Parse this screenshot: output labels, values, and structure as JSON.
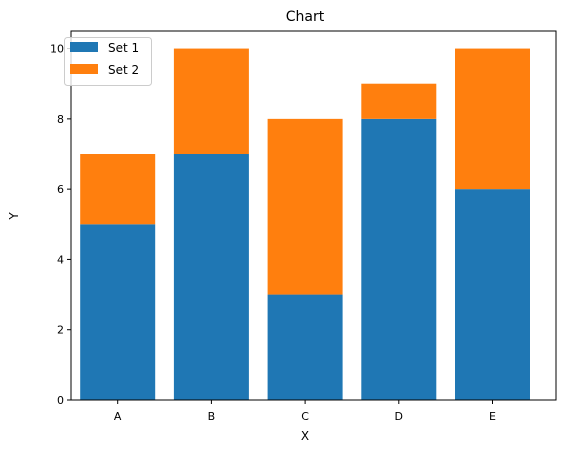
{
  "chart_data": {
    "type": "bar",
    "stacked": true,
    "title": "Chart",
    "xlabel": "X",
    "ylabel": "Y",
    "categories": [
      "A",
      "B",
      "C",
      "D",
      "E"
    ],
    "series": [
      {
        "name": "Set 1",
        "values": [
          5,
          7,
          3,
          8,
          6
        ],
        "color": "#1f77b4"
      },
      {
        "name": "Set 2",
        "values": [
          2,
          3,
          5,
          1,
          4
        ],
        "color": "#ff7f0e"
      }
    ],
    "ylim": [
      0,
      10.5
    ],
    "yticks": [
      0,
      2,
      4,
      6,
      8,
      10
    ],
    "grid": false,
    "legend_position": "top-left"
  }
}
